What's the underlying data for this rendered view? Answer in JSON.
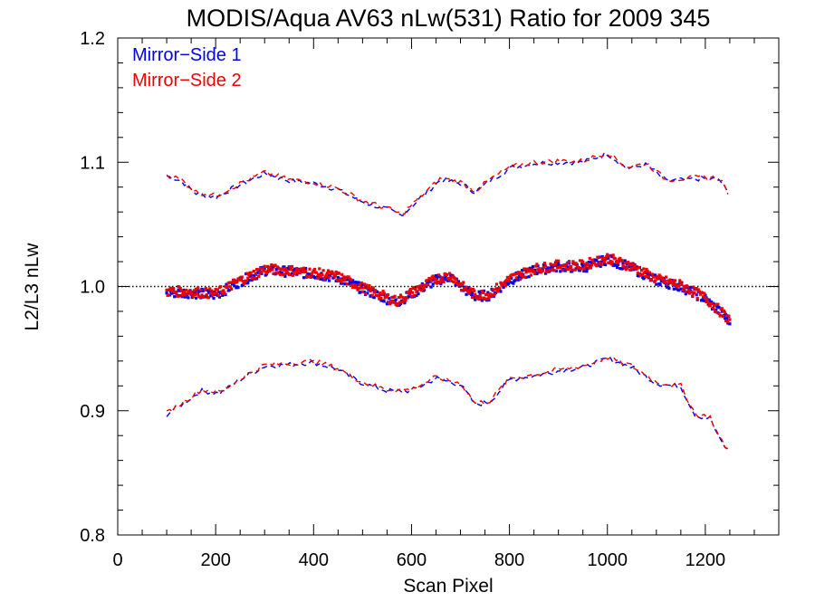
{
  "chart_data": {
    "type": "scatter",
    "title": "MODIS/Aqua AV63 nLw(531) Ratio for 2009 345",
    "xlabel": "Scan Pixel",
    "ylabel": "L2/L3 nLw",
    "xlim": [
      0,
      1350
    ],
    "ylim": [
      0.8,
      1.2
    ],
    "xticks": [
      0,
      200,
      400,
      600,
      800,
      1000,
      1200
    ],
    "xtick_labels": [
      "0",
      "200",
      "400",
      "600",
      "800",
      "1000",
      "1200"
    ],
    "yticks": [
      0.8,
      0.9,
      1.0,
      1.1,
      1.2
    ],
    "ytick_labels": [
      "0.8",
      "0.9",
      "1.0",
      "1.1",
      "1.2"
    ],
    "reference_line": 1.0,
    "legend": "top-left",
    "series": [
      {
        "name": "Mirror−Side 1",
        "color": "#0000ee",
        "mean": [
          [
            100,
            0.995
          ],
          [
            150,
            0.995
          ],
          [
            200,
            0.993
          ],
          [
            250,
            1.004
          ],
          [
            300,
            1.013
          ],
          [
            350,
            1.012
          ],
          [
            400,
            1.01
          ],
          [
            450,
            1.007
          ],
          [
            500,
            0.998
          ],
          [
            550,
            0.99
          ],
          [
            570,
            0.987
          ],
          [
            600,
            0.994
          ],
          [
            650,
            1.005
          ],
          [
            680,
            1.008
          ],
          [
            700,
            1.0
          ],
          [
            730,
            0.992
          ],
          [
            760,
            0.993
          ],
          [
            800,
            1.005
          ],
          [
            850,
            1.013
          ],
          [
            900,
            1.016
          ],
          [
            950,
            1.015
          ],
          [
            1000,
            1.022
          ],
          [
            1050,
            1.015
          ],
          [
            1100,
            1.005
          ],
          [
            1150,
            1.0
          ],
          [
            1200,
            0.99
          ],
          [
            1250,
            0.972
          ]
        ],
        "upper": [
          [
            100,
            1.089
          ],
          [
            130,
            1.085
          ],
          [
            160,
            1.075
          ],
          [
            200,
            1.072
          ],
          [
            250,
            1.082
          ],
          [
            300,
            1.091
          ],
          [
            350,
            1.085
          ],
          [
            400,
            1.083
          ],
          [
            450,
            1.078
          ],
          [
            500,
            1.068
          ],
          [
            550,
            1.062
          ],
          [
            580,
            1.057
          ],
          [
            620,
            1.072
          ],
          [
            660,
            1.086
          ],
          [
            700,
            1.083
          ],
          [
            730,
            1.076
          ],
          [
            760,
            1.085
          ],
          [
            800,
            1.095
          ],
          [
            850,
            1.099
          ],
          [
            900,
            1.1
          ],
          [
            950,
            1.1
          ],
          [
            1000,
            1.107
          ],
          [
            1040,
            1.095
          ],
          [
            1080,
            1.098
          ],
          [
            1120,
            1.085
          ],
          [
            1160,
            1.086
          ],
          [
            1200,
            1.087
          ],
          [
            1230,
            1.086
          ],
          [
            1250,
            1.072
          ]
        ],
        "lower": [
          [
            100,
            0.897
          ],
          [
            130,
            0.905
          ],
          [
            170,
            0.916
          ],
          [
            210,
            0.914
          ],
          [
            250,
            0.925
          ],
          [
            300,
            0.936
          ],
          [
            350,
            0.937
          ],
          [
            400,
            0.939
          ],
          [
            450,
            0.933
          ],
          [
            500,
            0.922
          ],
          [
            550,
            0.916
          ],
          [
            600,
            0.916
          ],
          [
            650,
            0.926
          ],
          [
            700,
            0.921
          ],
          [
            730,
            0.905
          ],
          [
            760,
            0.907
          ],
          [
            800,
            0.925
          ],
          [
            850,
            0.928
          ],
          [
            900,
            0.932
          ],
          [
            950,
            0.935
          ],
          [
            1000,
            0.942
          ],
          [
            1050,
            0.935
          ],
          [
            1100,
            0.922
          ],
          [
            1150,
            0.919
          ],
          [
            1180,
            0.896
          ],
          [
            1210,
            0.894
          ],
          [
            1230,
            0.876
          ],
          [
            1250,
            0.866
          ]
        ]
      },
      {
        "name": "Mirror−Side 2",
        "color": "#ee0000",
        "mean": [
          [
            100,
            0.996
          ],
          [
            150,
            0.996
          ],
          [
            200,
            0.994
          ],
          [
            250,
            1.005
          ],
          [
            300,
            1.014
          ],
          [
            350,
            1.013
          ],
          [
            400,
            1.011
          ],
          [
            450,
            1.008
          ],
          [
            500,
            0.999
          ],
          [
            550,
            0.991
          ],
          [
            570,
            0.988
          ],
          [
            600,
            0.995
          ],
          [
            650,
            1.006
          ],
          [
            680,
            1.009
          ],
          [
            700,
            1.001
          ],
          [
            730,
            0.993
          ],
          [
            760,
            0.994
          ],
          [
            800,
            1.006
          ],
          [
            850,
            1.014
          ],
          [
            900,
            1.017
          ],
          [
            950,
            1.017
          ],
          [
            1000,
            1.023
          ],
          [
            1050,
            1.016
          ],
          [
            1100,
            1.006
          ],
          [
            1150,
            1.001
          ],
          [
            1200,
            0.991
          ],
          [
            1250,
            0.973
          ]
        ],
        "upper": [
          [
            100,
            1.09
          ],
          [
            130,
            1.086
          ],
          [
            160,
            1.076
          ],
          [
            200,
            1.073
          ],
          [
            250,
            1.083
          ],
          [
            300,
            1.092
          ],
          [
            350,
            1.086
          ],
          [
            400,
            1.084
          ],
          [
            450,
            1.079
          ],
          [
            500,
            1.069
          ],
          [
            550,
            1.063
          ],
          [
            580,
            1.058
          ],
          [
            620,
            1.073
          ],
          [
            660,
            1.087
          ],
          [
            700,
            1.084
          ],
          [
            730,
            1.077
          ],
          [
            760,
            1.086
          ],
          [
            800,
            1.096
          ],
          [
            850,
            1.1
          ],
          [
            900,
            1.101
          ],
          [
            950,
            1.101
          ],
          [
            1000,
            1.108
          ],
          [
            1040,
            1.096
          ],
          [
            1080,
            1.099
          ],
          [
            1120,
            1.086
          ],
          [
            1160,
            1.087
          ],
          [
            1200,
            1.088
          ],
          [
            1230,
            1.087
          ],
          [
            1250,
            1.073
          ]
        ],
        "lower": [
          [
            100,
            0.898
          ],
          [
            130,
            0.906
          ],
          [
            170,
            0.917
          ],
          [
            210,
            0.915
          ],
          [
            250,
            0.926
          ],
          [
            300,
            0.937
          ],
          [
            350,
            0.938
          ],
          [
            400,
            0.94
          ],
          [
            450,
            0.934
          ],
          [
            500,
            0.923
          ],
          [
            550,
            0.917
          ],
          [
            600,
            0.917
          ],
          [
            650,
            0.927
          ],
          [
            700,
            0.922
          ],
          [
            730,
            0.906
          ],
          [
            760,
            0.908
          ],
          [
            800,
            0.926
          ],
          [
            850,
            0.929
          ],
          [
            900,
            0.933
          ],
          [
            950,
            0.936
          ],
          [
            1000,
            0.943
          ],
          [
            1050,
            0.936
          ],
          [
            1100,
            0.923
          ],
          [
            1150,
            0.92
          ],
          [
            1180,
            0.897
          ],
          [
            1210,
            0.895
          ],
          [
            1230,
            0.877
          ],
          [
            1250,
            0.867
          ]
        ]
      }
    ]
  }
}
